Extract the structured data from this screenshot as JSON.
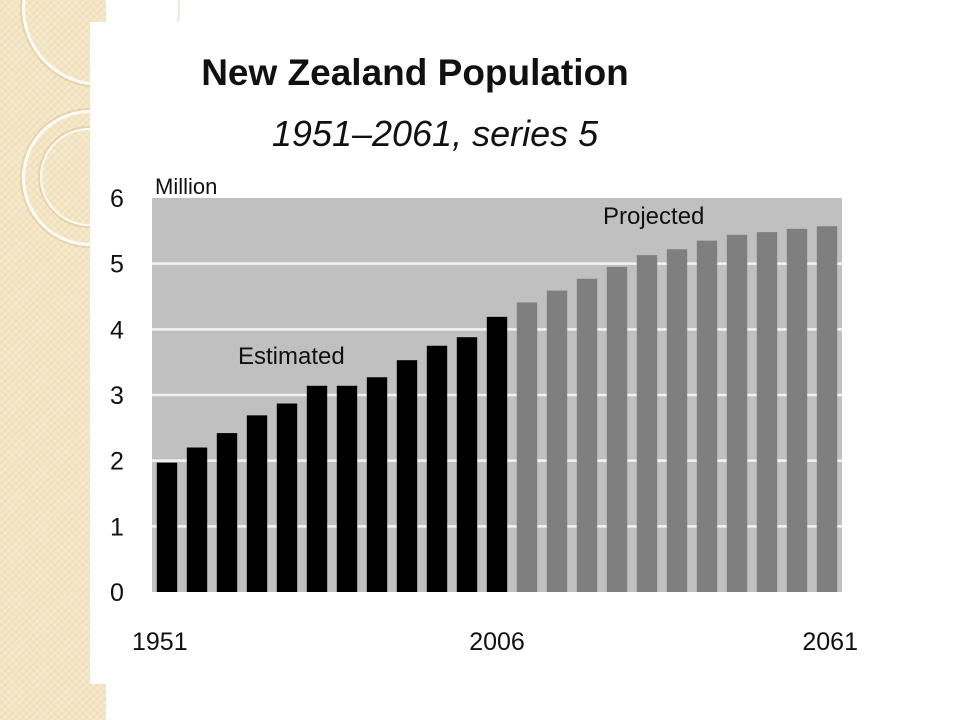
{
  "chart_data": {
    "type": "bar",
    "title": "New Zealand Population",
    "subtitle": "1951–2061, series 5",
    "ylabel": "Million",
    "ylim": [
      0,
      6
    ],
    "yticks": [
      "0",
      "1",
      "2",
      "3",
      "4",
      "5",
      "6"
    ],
    "x_tick_labels": [
      {
        "label": "1951",
        "index": 0
      },
      {
        "label": "2006",
        "index": 11
      },
      {
        "label": "2061",
        "index": 22
      }
    ],
    "grid": true,
    "colors": {
      "plot_bg": "#c0c0c0",
      "grid": "#f2f2f2",
      "estimated": "#000000",
      "projected": "#7f7f7f"
    },
    "annotations": [
      {
        "text": "Estimated",
        "series": "Estimated"
      },
      {
        "text": "Projected",
        "series": "Projected"
      }
    ],
    "series": [
      {
        "name": "Estimated",
        "x": [
          1951,
          1956,
          1961,
          1966,
          1971,
          1976,
          1981,
          1986,
          1991,
          1996,
          2001,
          2006
        ],
        "values": [
          1.97,
          2.2,
          2.42,
          2.69,
          2.87,
          3.14,
          3.14,
          3.27,
          3.53,
          3.75,
          3.88,
          4.19
        ]
      },
      {
        "name": "Projected",
        "x": [
          2011,
          2016,
          2021,
          2026,
          2031,
          2036,
          2041,
          2046,
          2051,
          2056,
          2061
        ],
        "values": [
          4.41,
          4.59,
          4.77,
          4.95,
          5.13,
          5.22,
          5.35,
          5.44,
          5.48,
          5.53,
          5.57
        ]
      }
    ]
  }
}
